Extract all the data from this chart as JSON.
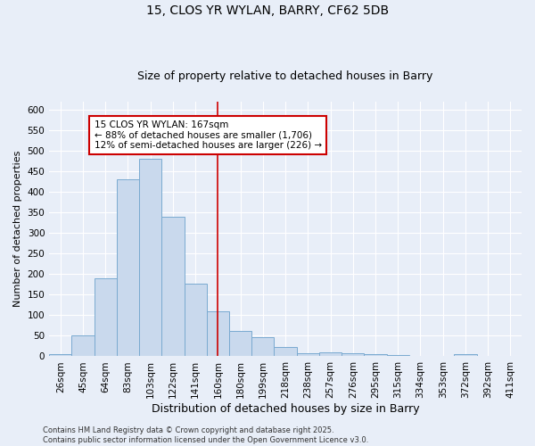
{
  "title": "15, CLOS YR WYLAN, BARRY, CF62 5DB",
  "subtitle": "Size of property relative to detached houses in Barry",
  "xlabel": "Distribution of detached houses by size in Barry",
  "ylabel": "Number of detached properties",
  "bar_color": "#c9d9ed",
  "bar_edge_color": "#7aaad0",
  "categories": [
    "26sqm",
    "45sqm",
    "64sqm",
    "83sqm",
    "103sqm",
    "122sqm",
    "141sqm",
    "160sqm",
    "180sqm",
    "199sqm",
    "218sqm",
    "238sqm",
    "257sqm",
    "276sqm",
    "295sqm",
    "315sqm",
    "334sqm",
    "353sqm",
    "372sqm",
    "392sqm",
    "411sqm"
  ],
  "values": [
    5,
    52,
    190,
    432,
    481,
    340,
    178,
    110,
    62,
    47,
    22,
    7,
    10,
    7,
    5,
    4,
    2,
    1,
    5,
    1,
    2
  ],
  "ylim": [
    0,
    620
  ],
  "yticks": [
    0,
    50,
    100,
    150,
    200,
    250,
    300,
    350,
    400,
    450,
    500,
    550,
    600
  ],
  "vline_index": 7,
  "vline_color": "#cc0000",
  "annotation_text": "15 CLOS YR WYLAN: 167sqm\n← 88% of detached houses are smaller (1,706)\n12% of semi-detached houses are larger (226) →",
  "annotation_box_color": "#ffffff",
  "annotation_box_edge_color": "#cc0000",
  "footer_text": "Contains HM Land Registry data © Crown copyright and database right 2025.\nContains public sector information licensed under the Open Government Licence v3.0.",
  "background_color": "#e8eef8",
  "grid_color": "#ffffff",
  "title_fontsize": 10,
  "subtitle_fontsize": 9,
  "ylabel_fontsize": 8,
  "xlabel_fontsize": 9,
  "tick_fontsize": 7.5,
  "footer_fontsize": 6
}
